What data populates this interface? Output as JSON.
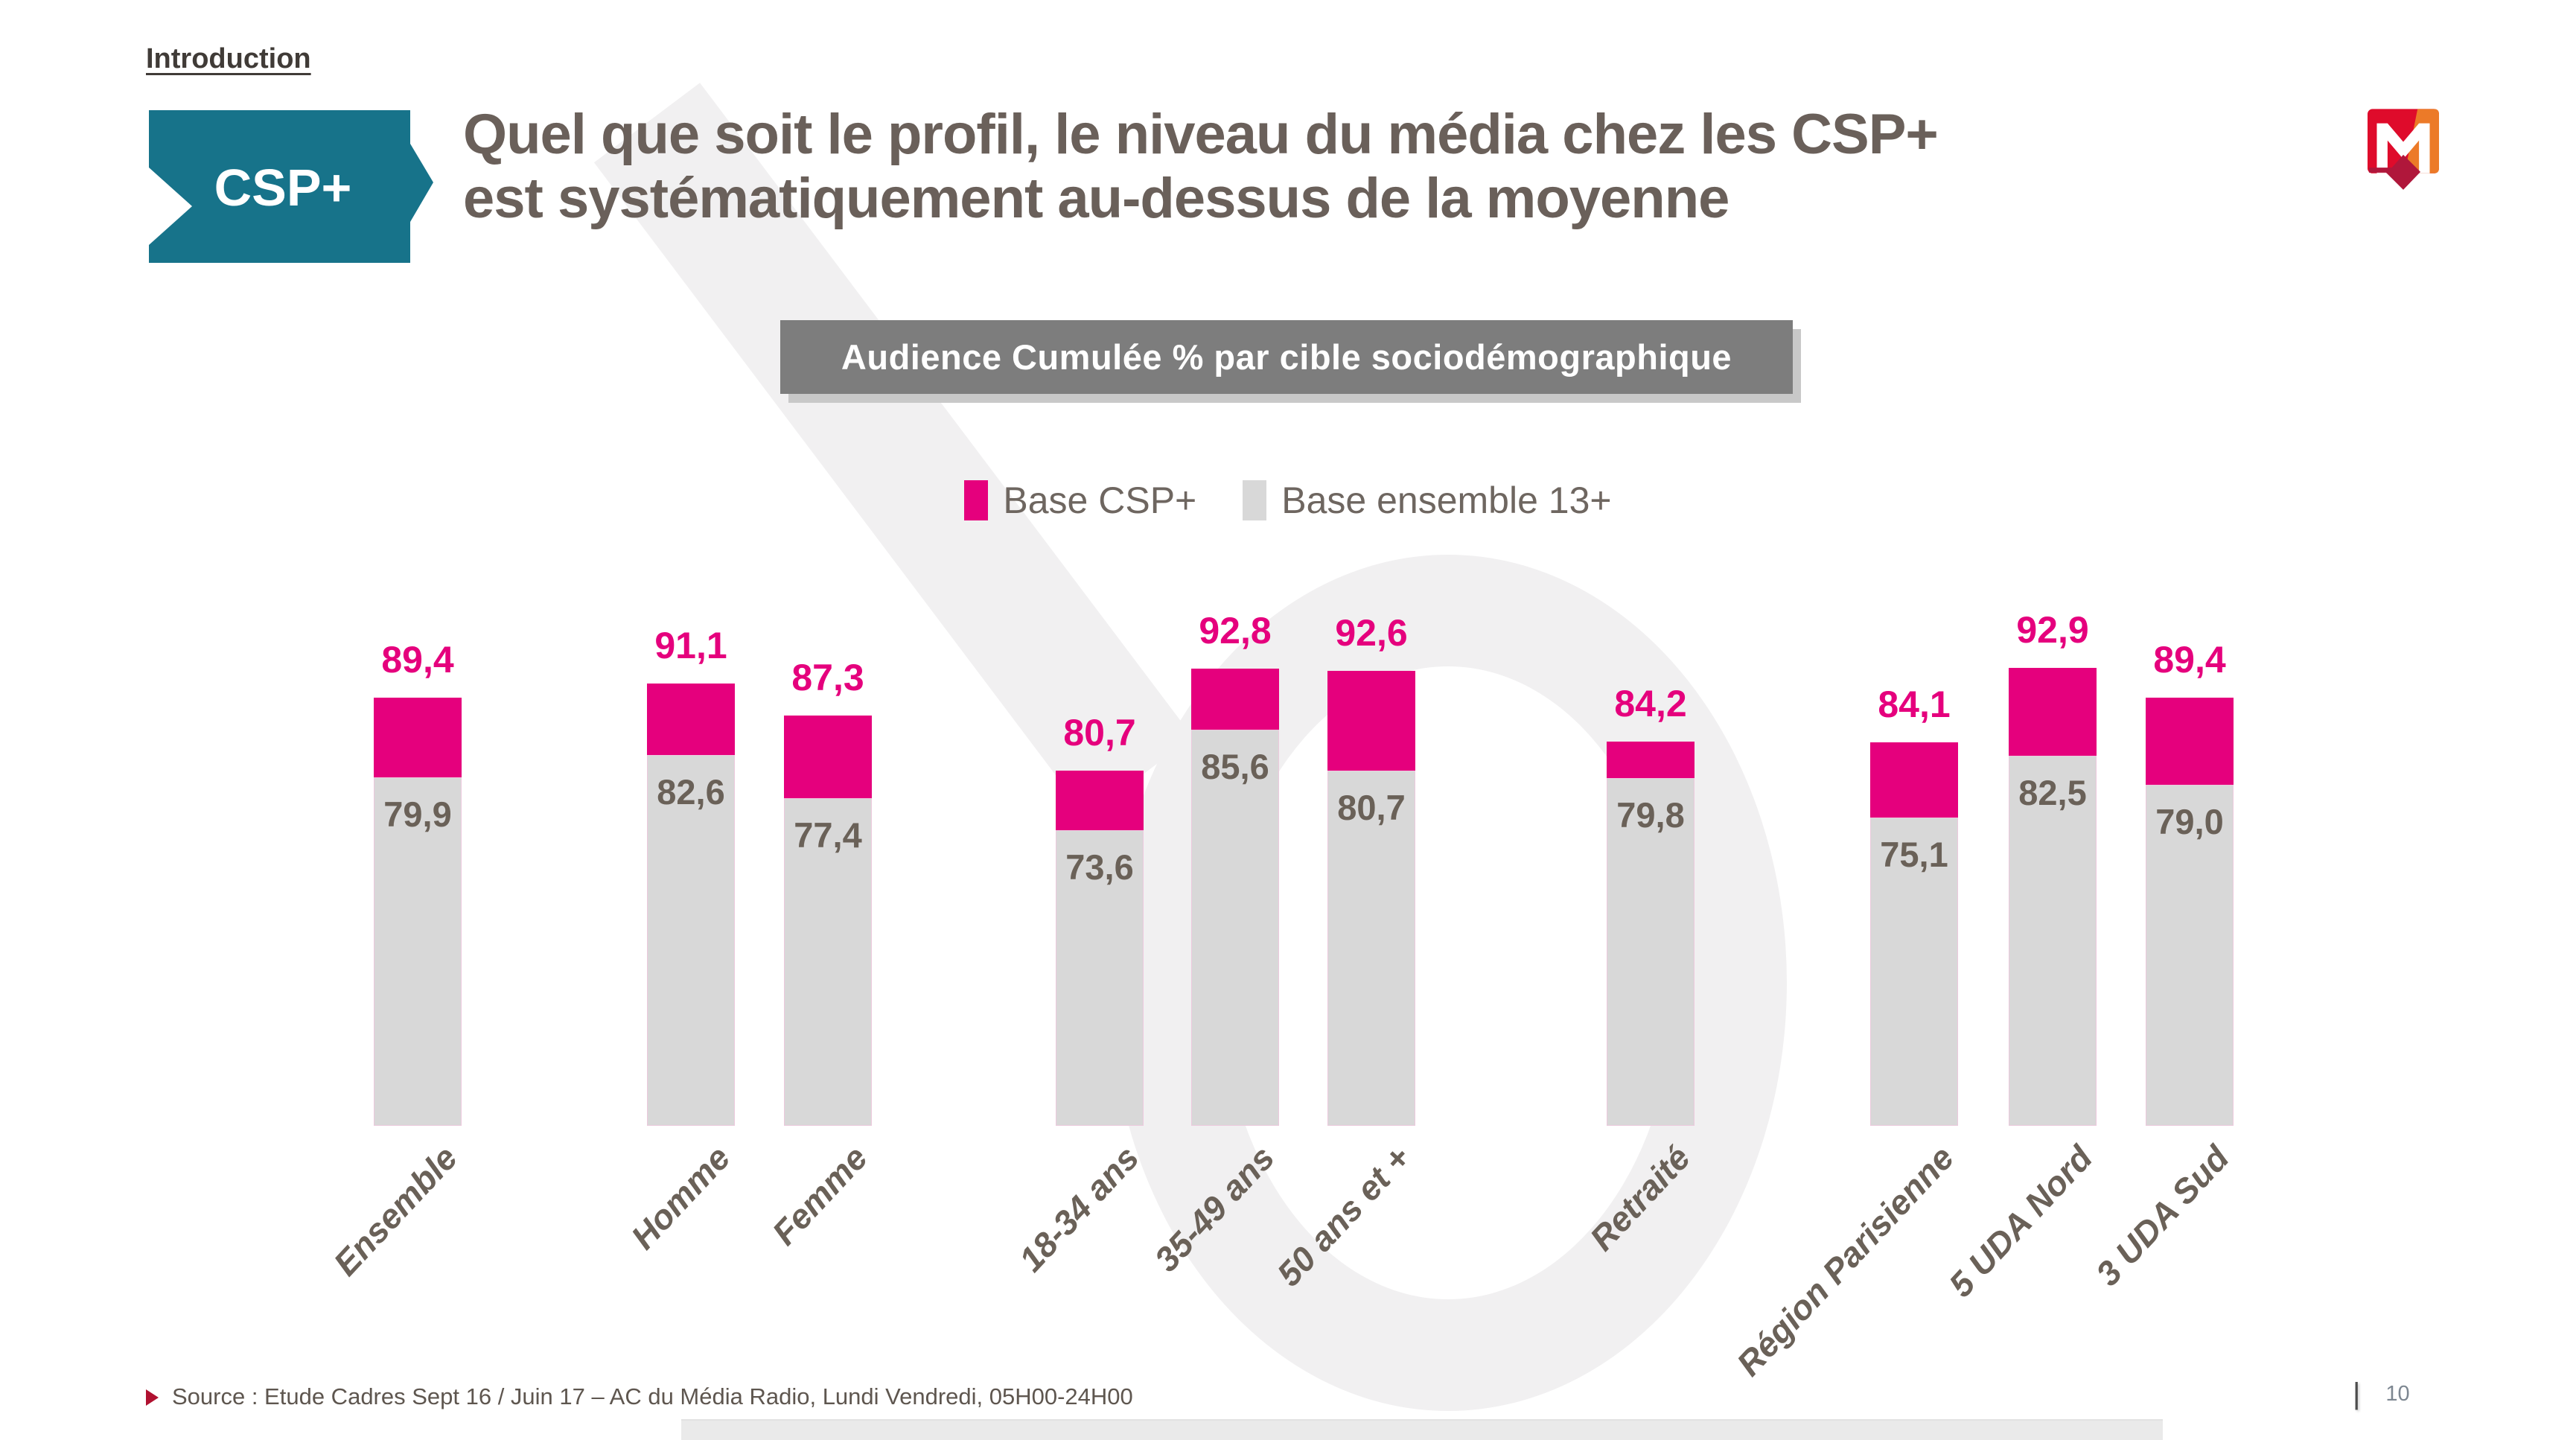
{
  "slide": {
    "kicker": "Introduction",
    "badge_label": "CSP+",
    "title_lines": [
      "Quel que soit le profil, le niveau du média chez les CSP+",
      "est systématiquement au-dessus de la moyenne"
    ],
    "banner_title": "Audience Cumulée % par cible sociodémographique",
    "source_text": "Source : Etude Cadres Sept 16 / Juin 17 – AC du Média Radio, Lundi Vendredi, 05H00-24H00",
    "page_separator": "|",
    "page_number": "10"
  },
  "colors": {
    "accent_pink": "#e5007d",
    "bar_gray": "#d8d8d8",
    "badge_teal": "#17738a",
    "banner_gray": "#7d7d7d",
    "warm_text_gray": "#6a6158",
    "watermark_gray": "#f1f0f1",
    "logo_red": "#df0b2b",
    "logo_orange": "#ec7a28",
    "logo_dark_red": "#b0173b"
  },
  "chart_data": {
    "type": "bar",
    "title": "Audience Cumulée % par cible sociodémographique",
    "categories": [
      "Ensemble",
      "Homme",
      "Femme",
      "18-34 ans",
      "35-49 ans",
      "50 ans et +",
      "Retraité",
      "Région Parisienne",
      "5 UDA Nord",
      "3 UDA Sud"
    ],
    "series": [
      {
        "name": "Base CSP+",
        "color": "#e5007d",
        "values": [
          89.4,
          91.1,
          87.3,
          80.7,
          92.8,
          92.6,
          84.2,
          84.1,
          92.9,
          89.4
        ]
      },
      {
        "name": "Base ensemble 13+",
        "color": "#d8d8d8",
        "values": [
          79.9,
          82.6,
          77.4,
          73.6,
          85.6,
          80.7,
          79.8,
          75.1,
          82.5,
          79.0
        ]
      }
    ],
    "grouping": [
      [
        0
      ],
      [
        1,
        2
      ],
      [
        3,
        4,
        5
      ],
      [
        6
      ],
      [
        7,
        8,
        9
      ]
    ],
    "legend_position": "top-center",
    "value_label_format": "one decimal, French comma (e.g. 89,4)",
    "bar_style": "overlay: CSP+ total drawn as pink cap above gray ensemble bar",
    "y_axis": "hidden",
    "ylim_estimated": [
      38.5,
      95
    ],
    "grid": false
  }
}
